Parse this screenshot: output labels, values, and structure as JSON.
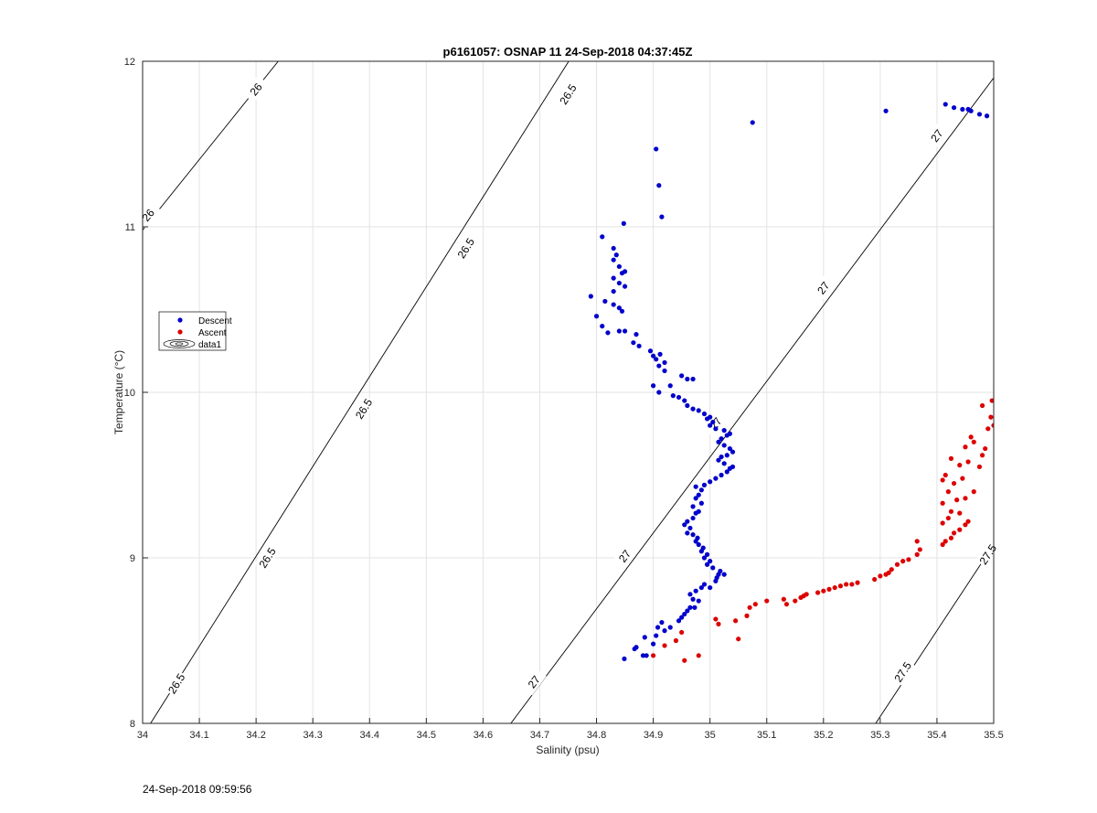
{
  "footer": {
    "timestamp": "24-Sep-2018 09:59:56"
  },
  "chart_data": {
    "type": "scatter",
    "title": "p6161057: OSNAP 11 24-Sep-2018 04:37:45Z",
    "xlabel": "Salinity (psu)",
    "ylabel": "Temperature (°C)",
    "xlim": [
      34,
      35.5
    ],
    "ylim": [
      8,
      12
    ],
    "xticks": [
      "34",
      "34.1",
      "34.2",
      "34.3",
      "34.4",
      "34.5",
      "34.6",
      "34.7",
      "34.8",
      "34.9",
      "35",
      "35.1",
      "35.2",
      "35.3",
      "35.4",
      "35.5"
    ],
    "yticks": [
      "8",
      "9",
      "10",
      "11",
      "12"
    ],
    "grid": true,
    "legend": {
      "placement": "left",
      "entries": [
        "Descent",
        "Ascent",
        "data1"
      ]
    },
    "colors": {
      "descent": "#0000cc",
      "ascent": "#dd0000",
      "contour": "#000000",
      "grid": "#e3e3e3"
    },
    "contours": [
      {
        "level": "26",
        "line": [
          [
            34.0,
            10.98
          ],
          [
            34.239,
            12.0
          ]
        ],
        "labels": [
          [
            34.01,
            11.07
          ],
          [
            34.2,
            11.83
          ]
        ]
      },
      {
        "level": "26.5",
        "line": [
          [
            34.014,
            8.0
          ],
          [
            34.751,
            12.0
          ]
        ],
        "labels": [
          [
            34.06,
            8.24
          ],
          [
            34.22,
            9.0
          ],
          [
            34.39,
            9.9
          ],
          [
            34.57,
            10.87
          ],
          [
            34.75,
            11.8
          ]
        ]
      },
      {
        "level": "27",
        "line": [
          [
            34.649,
            8.0
          ],
          [
            35.5,
            11.9
          ]
        ],
        "labels": [
          [
            34.69,
            8.25
          ],
          [
            34.85,
            9.01
          ],
          [
            35.01,
            9.81
          ],
          [
            35.2,
            10.63
          ],
          [
            35.4,
            11.55
          ]
        ]
      },
      {
        "level": "27.5",
        "line": [
          [
            35.292,
            8.0
          ],
          [
            35.5,
            9.08
          ]
        ],
        "labels": [
          [
            35.34,
            8.31
          ],
          [
            35.49,
            9.02
          ]
        ]
      }
    ],
    "series": [
      {
        "name": "Descent",
        "points": [
          [
            34.849,
            8.39
          ],
          [
            34.882,
            8.41
          ],
          [
            34.888,
            8.41
          ],
          [
            34.885,
            8.52
          ],
          [
            34.87,
            8.46
          ],
          [
            34.867,
            8.45
          ],
          [
            34.9,
            8.48
          ],
          [
            34.905,
            8.53
          ],
          [
            34.92,
            8.56
          ],
          [
            34.908,
            8.58
          ],
          [
            34.915,
            8.61
          ],
          [
            34.93,
            8.58
          ],
          [
            34.945,
            8.62
          ],
          [
            34.95,
            8.64
          ],
          [
            34.955,
            8.66
          ],
          [
            34.96,
            8.68
          ],
          [
            34.965,
            8.7
          ],
          [
            34.973,
            8.7
          ],
          [
            34.97,
            8.75
          ],
          [
            34.98,
            8.74
          ],
          [
            34.965,
            8.78
          ],
          [
            34.975,
            8.8
          ],
          [
            34.985,
            8.82
          ],
          [
            34.99,
            8.84
          ],
          [
            35.0,
            8.82
          ],
          [
            35.01,
            8.86
          ],
          [
            35.012,
            8.88
          ],
          [
            35.015,
            8.9
          ],
          [
            35.018,
            8.92
          ],
          [
            35.025,
            8.9
          ],
          [
            35.005,
            8.94
          ],
          [
            34.995,
            8.96
          ],
          [
            35.0,
            8.98
          ],
          [
            34.99,
            9.0
          ],
          [
            34.995,
            9.02
          ],
          [
            34.985,
            9.04
          ],
          [
            34.988,
            9.06
          ],
          [
            34.98,
            9.08
          ],
          [
            34.975,
            9.1
          ],
          [
            34.978,
            9.12
          ],
          [
            34.97,
            9.14
          ],
          [
            34.96,
            9.15
          ],
          [
            34.965,
            9.18
          ],
          [
            34.955,
            9.2
          ],
          [
            34.96,
            9.22
          ],
          [
            34.97,
            9.24
          ],
          [
            34.975,
            9.27
          ],
          [
            34.98,
            9.28
          ],
          [
            34.97,
            9.31
          ],
          [
            34.985,
            9.33
          ],
          [
            34.975,
            9.36
          ],
          [
            34.98,
            9.38
          ],
          [
            34.985,
            9.41
          ],
          [
            34.975,
            9.43
          ],
          [
            34.99,
            9.44
          ],
          [
            35.0,
            9.46
          ],
          [
            35.01,
            9.48
          ],
          [
            35.02,
            9.5
          ],
          [
            35.03,
            9.52
          ],
          [
            35.035,
            9.54
          ],
          [
            35.04,
            9.55
          ],
          [
            35.025,
            9.57
          ],
          [
            35.015,
            9.59
          ],
          [
            35.02,
            9.61
          ],
          [
            35.03,
            9.62
          ],
          [
            35.04,
            9.64
          ],
          [
            35.035,
            9.66
          ],
          [
            35.025,
            9.68
          ],
          [
            35.015,
            9.7
          ],
          [
            35.02,
            9.72
          ],
          [
            35.03,
            9.74
          ],
          [
            35.035,
            9.75
          ],
          [
            35.025,
            9.77
          ],
          [
            35.01,
            9.78
          ],
          [
            35.0,
            9.8
          ],
          [
            35.005,
            9.82
          ],
          [
            34.995,
            9.84
          ],
          [
            35.0,
            9.85
          ],
          [
            34.99,
            9.87
          ],
          [
            34.98,
            9.89
          ],
          [
            34.97,
            9.9
          ],
          [
            34.96,
            9.92
          ],
          [
            34.955,
            9.95
          ],
          [
            34.945,
            9.97
          ],
          [
            34.935,
            9.98
          ],
          [
            34.91,
            10.0
          ],
          [
            34.9,
            10.04
          ],
          [
            34.93,
            10.04
          ],
          [
            34.96,
            10.08
          ],
          [
            34.97,
            10.08
          ],
          [
            34.95,
            10.1
          ],
          [
            34.92,
            10.13
          ],
          [
            34.91,
            10.16
          ],
          [
            34.92,
            10.18
          ],
          [
            34.905,
            10.2
          ],
          [
            34.9,
            10.22
          ],
          [
            34.912,
            10.23
          ],
          [
            34.895,
            10.25
          ],
          [
            34.875,
            10.28
          ],
          [
            34.865,
            10.3
          ],
          [
            34.87,
            10.35
          ],
          [
            34.85,
            10.37
          ],
          [
            34.84,
            10.37
          ],
          [
            34.82,
            10.36
          ],
          [
            34.81,
            10.4
          ],
          [
            34.8,
            10.46
          ],
          [
            34.845,
            10.49
          ],
          [
            34.84,
            10.51
          ],
          [
            34.83,
            10.53
          ],
          [
            34.815,
            10.55
          ],
          [
            34.79,
            10.58
          ],
          [
            34.83,
            10.61
          ],
          [
            34.85,
            10.64
          ],
          [
            34.84,
            10.66
          ],
          [
            34.83,
            10.69
          ],
          [
            34.845,
            10.72
          ],
          [
            34.85,
            10.73
          ],
          [
            34.84,
            10.76
          ],
          [
            34.83,
            10.8
          ],
          [
            34.835,
            10.83
          ],
          [
            34.83,
            10.87
          ],
          [
            34.81,
            10.94
          ],
          [
            34.848,
            11.02
          ],
          [
            34.915,
            11.06
          ],
          [
            34.91,
            11.25
          ],
          [
            34.905,
            11.47
          ],
          [
            35.075,
            11.63
          ],
          [
            35.31,
            11.7
          ],
          [
            35.415,
            11.74
          ],
          [
            35.43,
            11.72
          ],
          [
            35.445,
            11.71
          ],
          [
            35.455,
            11.71
          ],
          [
            35.46,
            11.7
          ],
          [
            35.475,
            11.68
          ],
          [
            35.488,
            11.67
          ]
        ]
      },
      {
        "name": "Ascent",
        "points": [
          [
            34.955,
            8.38
          ],
          [
            34.98,
            8.41
          ],
          [
            34.9,
            8.41
          ],
          [
            34.92,
            8.47
          ],
          [
            34.94,
            8.5
          ],
          [
            34.95,
            8.55
          ],
          [
            35.05,
            8.51
          ],
          [
            35.015,
            8.6
          ],
          [
            35.01,
            8.63
          ],
          [
            35.045,
            8.62
          ],
          [
            35.065,
            8.65
          ],
          [
            35.07,
            8.7
          ],
          [
            35.08,
            8.72
          ],
          [
            35.1,
            8.74
          ],
          [
            35.13,
            8.75
          ],
          [
            35.135,
            8.72
          ],
          [
            35.15,
            8.74
          ],
          [
            35.16,
            8.76
          ],
          [
            35.165,
            8.77
          ],
          [
            35.17,
            8.78
          ],
          [
            35.19,
            8.79
          ],
          [
            35.2,
            8.8
          ],
          [
            35.21,
            8.81
          ],
          [
            35.22,
            8.82
          ],
          [
            35.23,
            8.83
          ],
          [
            35.24,
            8.84
          ],
          [
            35.25,
            8.84
          ],
          [
            35.26,
            8.85
          ],
          [
            35.29,
            8.87
          ],
          [
            35.3,
            8.89
          ],
          [
            35.31,
            8.9
          ],
          [
            35.315,
            8.91
          ],
          [
            35.32,
            8.93
          ],
          [
            35.33,
            8.96
          ],
          [
            35.34,
            8.98
          ],
          [
            35.35,
            8.99
          ],
          [
            35.365,
            9.02
          ],
          [
            35.37,
            9.05
          ],
          [
            35.365,
            9.1
          ],
          [
            35.41,
            9.08
          ],
          [
            35.415,
            9.1
          ],
          [
            35.425,
            9.12
          ],
          [
            35.43,
            9.15
          ],
          [
            35.44,
            9.17
          ],
          [
            35.45,
            9.2
          ],
          [
            35.41,
            9.21
          ],
          [
            35.42,
            9.24
          ],
          [
            35.455,
            9.22
          ],
          [
            35.44,
            9.27
          ],
          [
            35.425,
            9.28
          ],
          [
            35.41,
            9.33
          ],
          [
            35.435,
            9.35
          ],
          [
            35.45,
            9.36
          ],
          [
            35.465,
            9.4
          ],
          [
            35.42,
            9.4
          ],
          [
            35.43,
            9.45
          ],
          [
            35.41,
            9.47
          ],
          [
            35.445,
            9.48
          ],
          [
            35.415,
            9.5
          ],
          [
            35.475,
            9.55
          ],
          [
            35.44,
            9.56
          ],
          [
            35.455,
            9.58
          ],
          [
            35.425,
            9.6
          ],
          [
            35.48,
            9.62
          ],
          [
            35.485,
            9.66
          ],
          [
            35.45,
            9.67
          ],
          [
            35.465,
            9.7
          ],
          [
            35.46,
            9.73
          ],
          [
            35.49,
            9.78
          ],
          [
            35.5,
            9.8
          ],
          [
            35.495,
            9.85
          ],
          [
            35.48,
            9.92
          ],
          [
            35.497,
            9.95
          ]
        ]
      }
    ]
  }
}
